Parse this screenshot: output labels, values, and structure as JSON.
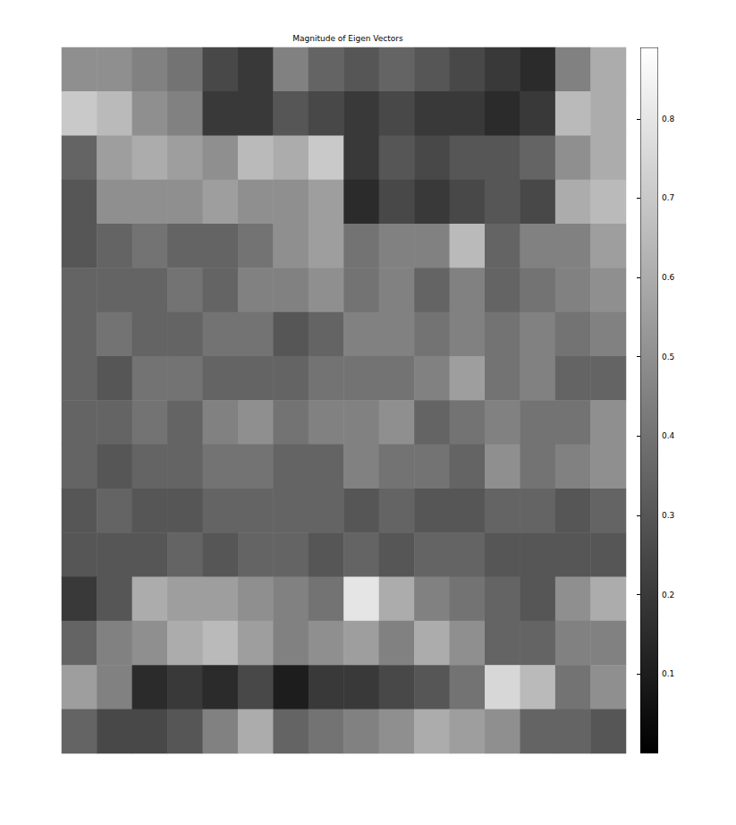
{
  "chart_data": {
    "type": "heatmap",
    "title": "Magnitude of Eigen Vectors",
    "tick_labels": false,
    "cells": [
      [
        0.5,
        0.5,
        0.45,
        0.4,
        0.25,
        0.2,
        0.45,
        0.35,
        0.3,
        0.35,
        0.3,
        0.25,
        0.2,
        0.15,
        0.45,
        0.6
      ],
      [
        0.7,
        0.65,
        0.5,
        0.45,
        0.2,
        0.2,
        0.3,
        0.25,
        0.2,
        0.25,
        0.2,
        0.2,
        0.15,
        0.2,
        0.65,
        0.6
      ],
      [
        0.35,
        0.55,
        0.6,
        0.55,
        0.5,
        0.65,
        0.6,
        0.7,
        0.2,
        0.3,
        0.25,
        0.3,
        0.3,
        0.35,
        0.5,
        0.6
      ],
      [
        0.3,
        0.5,
        0.5,
        0.5,
        0.55,
        0.5,
        0.5,
        0.55,
        0.15,
        0.25,
        0.2,
        0.25,
        0.3,
        0.25,
        0.6,
        0.65
      ],
      [
        0.3,
        0.35,
        0.4,
        0.35,
        0.35,
        0.4,
        0.5,
        0.55,
        0.4,
        0.45,
        0.45,
        0.65,
        0.35,
        0.45,
        0.45,
        0.55
      ],
      [
        0.35,
        0.35,
        0.35,
        0.4,
        0.35,
        0.45,
        0.45,
        0.5,
        0.4,
        0.45,
        0.35,
        0.45,
        0.35,
        0.4,
        0.45,
        0.5
      ],
      [
        0.35,
        0.4,
        0.35,
        0.35,
        0.4,
        0.4,
        0.3,
        0.35,
        0.45,
        0.45,
        0.4,
        0.45,
        0.4,
        0.45,
        0.4,
        0.45
      ],
      [
        0.35,
        0.3,
        0.4,
        0.4,
        0.35,
        0.35,
        0.35,
        0.4,
        0.4,
        0.4,
        0.45,
        0.55,
        0.4,
        0.45,
        0.35,
        0.35
      ],
      [
        0.35,
        0.35,
        0.4,
        0.35,
        0.45,
        0.5,
        0.4,
        0.45,
        0.45,
        0.5,
        0.35,
        0.4,
        0.45,
        0.4,
        0.4,
        0.5
      ],
      [
        0.35,
        0.3,
        0.35,
        0.35,
        0.4,
        0.4,
        0.35,
        0.35,
        0.45,
        0.4,
        0.4,
        0.35,
        0.5,
        0.4,
        0.45,
        0.5
      ],
      [
        0.3,
        0.35,
        0.3,
        0.3,
        0.35,
        0.35,
        0.35,
        0.35,
        0.3,
        0.35,
        0.3,
        0.3,
        0.35,
        0.35,
        0.3,
        0.35
      ],
      [
        0.3,
        0.3,
        0.3,
        0.35,
        0.3,
        0.35,
        0.35,
        0.3,
        0.35,
        0.3,
        0.35,
        0.35,
        0.3,
        0.3,
        0.3,
        0.3
      ],
      [
        0.2,
        0.3,
        0.6,
        0.55,
        0.55,
        0.5,
        0.45,
        0.4,
        0.8,
        0.6,
        0.45,
        0.4,
        0.35,
        0.3,
        0.5,
        0.6
      ],
      [
        0.35,
        0.45,
        0.5,
        0.6,
        0.65,
        0.55,
        0.45,
        0.5,
        0.55,
        0.45,
        0.6,
        0.5,
        0.35,
        0.35,
        0.45,
        0.45
      ],
      [
        0.55,
        0.45,
        0.15,
        0.2,
        0.15,
        0.25,
        0.1,
        0.2,
        0.2,
        0.25,
        0.3,
        0.4,
        0.75,
        0.65,
        0.4,
        0.5
      ],
      [
        0.35,
        0.25,
        0.25,
        0.3,
        0.45,
        0.6,
        0.35,
        0.4,
        0.45,
        0.5,
        0.6,
        0.55,
        0.5,
        0.35,
        0.35,
        0.3
      ]
    ],
    "clim": [
      0,
      0.89
    ],
    "cticks": [
      0.1,
      0.2,
      0.3,
      0.4,
      0.5,
      0.6,
      0.7,
      0.8
    ]
  }
}
